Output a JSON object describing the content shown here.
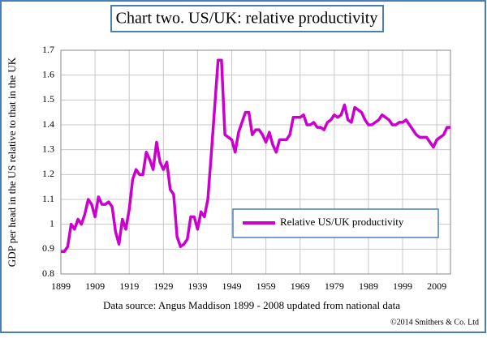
{
  "chart_data": {
    "type": "line",
    "title": "Chart two. US/UK: relative productivity",
    "y_label": "GDP per head in the US relative to that in the UK",
    "source": "Data source: Angus Maddison 1899 - 2008 updated from national data",
    "copyright": "©2014 Smithers & Co. Ltd",
    "x": [
      1899,
      1900,
      1901,
      1902,
      1903,
      1904,
      1905,
      1906,
      1907,
      1908,
      1909,
      1910,
      1911,
      1912,
      1913,
      1914,
      1915,
      1916,
      1917,
      1918,
      1919,
      1920,
      1921,
      1922,
      1923,
      1924,
      1925,
      1926,
      1927,
      1928,
      1929,
      1930,
      1931,
      1932,
      1933,
      1934,
      1935,
      1936,
      1937,
      1938,
      1939,
      1940,
      1941,
      1942,
      1943,
      1944,
      1945,
      1946,
      1947,
      1948,
      1949,
      1950,
      1951,
      1952,
      1953,
      1954,
      1955,
      1956,
      1957,
      1958,
      1959,
      1960,
      1961,
      1962,
      1963,
      1964,
      1965,
      1966,
      1967,
      1968,
      1969,
      1970,
      1971,
      1972,
      1973,
      1974,
      1975,
      1976,
      1977,
      1978,
      1979,
      1980,
      1981,
      1982,
      1983,
      1984,
      1985,
      1986,
      1987,
      1988,
      1989,
      1990,
      1991,
      1992,
      1993,
      1994,
      1995,
      1996,
      1997,
      1998,
      1999,
      2000,
      2001,
      2002,
      2003,
      2004,
      2005,
      2006,
      2007,
      2008,
      2009,
      2010,
      2011,
      2012,
      2013
    ],
    "series": [
      {
        "name": "Relative US/UK productivity",
        "color": "#cc00cc",
        "values": [
          0.89,
          0.89,
          0.91,
          1.0,
          0.98,
          1.02,
          1.0,
          1.04,
          1.1,
          1.08,
          1.03,
          1.11,
          1.08,
          1.08,
          1.09,
          1.07,
          0.97,
          0.92,
          1.02,
          0.98,
          1.06,
          1.18,
          1.22,
          1.2,
          1.2,
          1.29,
          1.26,
          1.22,
          1.33,
          1.25,
          1.22,
          1.25,
          1.14,
          1.12,
          0.95,
          0.91,
          0.92,
          0.94,
          1.03,
          1.03,
          0.98,
          1.05,
          1.03,
          1.1,
          1.28,
          1.47,
          1.66,
          1.66,
          1.36,
          1.35,
          1.34,
          1.29,
          1.37,
          1.41,
          1.45,
          1.45,
          1.36,
          1.38,
          1.38,
          1.36,
          1.33,
          1.37,
          1.32,
          1.29,
          1.34,
          1.34,
          1.34,
          1.36,
          1.43,
          1.43,
          1.43,
          1.44,
          1.4,
          1.4,
          1.41,
          1.39,
          1.39,
          1.38,
          1.41,
          1.42,
          1.44,
          1.43,
          1.44,
          1.48,
          1.42,
          1.41,
          1.47,
          1.46,
          1.45,
          1.42,
          1.4,
          1.4,
          1.41,
          1.42,
          1.44,
          1.43,
          1.42,
          1.4,
          1.4,
          1.41,
          1.41,
          1.42,
          1.4,
          1.38,
          1.36,
          1.35,
          1.35,
          1.35,
          1.33,
          1.31,
          1.34,
          1.35,
          1.36,
          1.39,
          1.39
        ]
      }
    ],
    "xlim": [
      1899,
      2013
    ],
    "xticks": [
      1899,
      1909,
      1919,
      1929,
      1939,
      1949,
      1959,
      1969,
      1979,
      1989,
      1999,
      2009
    ],
    "ylim": [
      0.8,
      1.7
    ],
    "yticks": [
      0.8,
      0.9,
      1,
      1.1,
      1.2,
      1.3,
      1.4,
      1.5,
      1.6,
      1.7
    ],
    "grid": true,
    "legend": "center right"
  }
}
